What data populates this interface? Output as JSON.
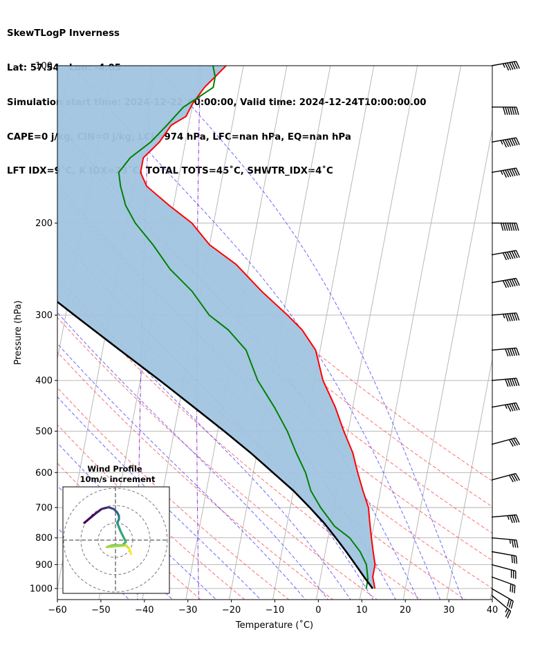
{
  "header": {
    "line1": "SkewTLogP Inverness",
    "line2": "Lat: 57.54   Lon: -4.05",
    "line3": "Simulation start time: 2024-12-22_00:00:00, Valid time: 2024-12-24T10:00:00.00",
    "line4": "CAPE=0 j/kg, CIN=0 j/kg, LCL=974 hPa, LFC=nan hPa, EQ=nan hPa",
    "line5": "LFT IDX=9˚C, K IDX=23˚C, TOTAL TOTS=45˚C, SHWTR_IDX=4˚C"
  },
  "colors": {
    "temperature": "#ff0000",
    "dewpoint": "#008000",
    "parcel": "#000000",
    "cape_fill": "#a0c4e0",
    "dry_adiabat": "#ff5555",
    "moist_adiabat": "#4444ff",
    "mixing_ratio": "#8833cc",
    "isotherm": "#999999",
    "grid": "#b0b0b0"
  },
  "chart_data": {
    "type": "line",
    "xlabel": "Temperature (˚C)",
    "ylabel": "Pressure (hPa)",
    "xlim": [
      -60,
      40
    ],
    "ylim": [
      1050,
      100
    ],
    "yscale": "log",
    "x_ticks": [
      "−60",
      "−50",
      "−40",
      "−30",
      "−20",
      "−10",
      "0",
      "10",
      "20",
      "30",
      "40"
    ],
    "y_ticks": [
      {
        "p": 100,
        "label": "100"
      },
      {
        "p": 200,
        "label": "200"
      },
      {
        "p": 300,
        "label": "300"
      },
      {
        "p": 400,
        "label": "400"
      },
      {
        "p": 500,
        "label": "500"
      },
      {
        "p": 600,
        "label": "600"
      },
      {
        "p": 700,
        "label": "700"
      },
      {
        "p": 800,
        "label": "800"
      },
      {
        "p": 900,
        "label": "900"
      },
      {
        "p": 1000,
        "label": "1000"
      }
    ],
    "grid": true,
    "skew_note": "skewed isotherms",
    "series": [
      {
        "key": "temperature",
        "points": [
          [
            13,
            1000
          ],
          [
            12,
            950
          ],
          [
            12,
            900
          ],
          [
            11,
            850
          ],
          [
            10,
            800
          ],
          [
            9,
            750
          ],
          [
            8,
            700
          ],
          [
            6,
            650
          ],
          [
            4,
            600
          ],
          [
            2,
            550
          ],
          [
            -1,
            500
          ],
          [
            -4,
            450
          ],
          [
            -8,
            400
          ],
          [
            -11,
            350
          ],
          [
            -15,
            320
          ],
          [
            -19,
            300
          ],
          [
            -26,
            270
          ],
          [
            -33,
            240
          ],
          [
            -40,
            220
          ],
          [
            -45,
            200
          ],
          [
            -51,
            185
          ],
          [
            -57,
            170
          ],
          [
            -59,
            160
          ],
          [
            -59,
            150
          ],
          [
            -56,
            140
          ],
          [
            -54,
            130
          ],
          [
            -51,
            125
          ],
          [
            -50,
            118
          ],
          [
            -48,
            110
          ],
          [
            -46,
            105
          ],
          [
            -44,
            100
          ]
        ]
      },
      {
        "key": "dewpoint",
        "points": [
          [
            11,
            1000
          ],
          [
            11,
            960
          ],
          [
            10,
            900
          ],
          [
            8,
            850
          ],
          [
            5,
            800
          ],
          [
            1,
            760
          ],
          [
            -3,
            700
          ],
          [
            -6,
            650
          ],
          [
            -8,
            600
          ],
          [
            -11,
            550
          ],
          [
            -14,
            500
          ],
          [
            -18,
            450
          ],
          [
            -23,
            400
          ],
          [
            -27,
            350
          ],
          [
            -32,
            320
          ],
          [
            -37,
            300
          ],
          [
            -42,
            270
          ],
          [
            -48,
            245
          ],
          [
            -53,
            220
          ],
          [
            -58,
            200
          ],
          [
            -61,
            185
          ],
          [
            -63,
            170
          ],
          [
            -64,
            160
          ],
          [
            -62,
            150
          ],
          [
            -58,
            140
          ],
          [
            -55,
            130
          ],
          [
            -52,
            120
          ],
          [
            -49,
            115
          ],
          [
            -46,
            110
          ],
          [
            -46,
            105
          ],
          [
            -47,
            100
          ]
        ]
      },
      {
        "key": "parcel",
        "points": [
          [
            12.5,
            1000
          ],
          [
            10,
            950
          ],
          [
            7.5,
            900
          ],
          [
            4.8,
            850
          ],
          [
            1.8,
            800
          ],
          [
            -1.5,
            750
          ],
          [
            -5.5,
            700
          ],
          [
            -10,
            650
          ],
          [
            -15.5,
            600
          ],
          [
            -21.5,
            550
          ],
          [
            -28.5,
            500
          ],
          [
            -36.5,
            450
          ],
          [
            -45.5,
            400
          ],
          [
            -56,
            350
          ],
          [
            -68,
            300
          ],
          [
            -82,
            250
          ],
          [
            -99,
            200
          ],
          [
            -119,
            150
          ],
          [
            -131,
            125
          ],
          [
            -145,
            100
          ]
        ]
      }
    ],
    "dry_adiabats_theta_C": [
      -30,
      -20,
      -10,
      0,
      10,
      20,
      30,
      40,
      50,
      60,
      70,
      80
    ],
    "moist_adiabats_C": [
      -40,
      -30,
      -20,
      -10,
      0,
      5,
      10,
      15,
      20,
      25,
      30,
      35
    ],
    "mixing_ratio_lines_gkg": [
      0.1,
      0.4
    ],
    "wind_barbs": [
      {
        "p": 100,
        "speed_kt": 65,
        "dir": 260
      },
      {
        "p": 120,
        "speed_kt": 70,
        "dir": 270
      },
      {
        "p": 140,
        "speed_kt": 75,
        "dir": 260
      },
      {
        "p": 160,
        "speed_kt": 75,
        "dir": 260
      },
      {
        "p": 200,
        "speed_kt": 80,
        "dir": 270
      },
      {
        "p": 230,
        "speed_kt": 70,
        "dir": 260
      },
      {
        "p": 260,
        "speed_kt": 70,
        "dir": 260
      },
      {
        "p": 300,
        "speed_kt": 65,
        "dir": 265
      },
      {
        "p": 350,
        "speed_kt": 60,
        "dir": 265
      },
      {
        "p": 400,
        "speed_kt": 60,
        "dir": 265
      },
      {
        "p": 450,
        "speed_kt": 55,
        "dir": 260
      },
      {
        "p": 530,
        "speed_kt": 40,
        "dir": 255
      },
      {
        "p": 620,
        "speed_kt": 40,
        "dir": 255
      },
      {
        "p": 730,
        "speed_kt": 45,
        "dir": 265
      },
      {
        "p": 800,
        "speed_kt": 35,
        "dir": 275
      },
      {
        "p": 850,
        "speed_kt": 30,
        "dir": 280
      },
      {
        "p": 900,
        "speed_kt": 30,
        "dir": 285
      },
      {
        "p": 950,
        "speed_kt": 30,
        "dir": 290
      },
      {
        "p": 1000,
        "speed_kt": 30,
        "dir": 300
      },
      {
        "p": 1030,
        "speed_kt": 25,
        "dir": 310
      }
    ],
    "hodograph": {
      "title": "Wind Profile",
      "subtitle": "10m/s increment",
      "rings_ms": [
        10,
        20,
        30
      ],
      "points": [
        [
          -18,
          10
        ],
        [
          -12,
          15
        ],
        [
          -8,
          18
        ],
        [
          -4,
          19
        ],
        [
          -1,
          18
        ],
        [
          1,
          16
        ],
        [
          2,
          14
        ],
        [
          2,
          12
        ],
        [
          1,
          10
        ],
        [
          3,
          5
        ],
        [
          6,
          -1
        ],
        [
          4,
          -3
        ],
        [
          -2,
          -3
        ],
        [
          -5,
          -4
        ],
        [
          6,
          -3
        ],
        [
          8,
          -5
        ],
        [
          9,
          -8
        ]
      ]
    }
  }
}
